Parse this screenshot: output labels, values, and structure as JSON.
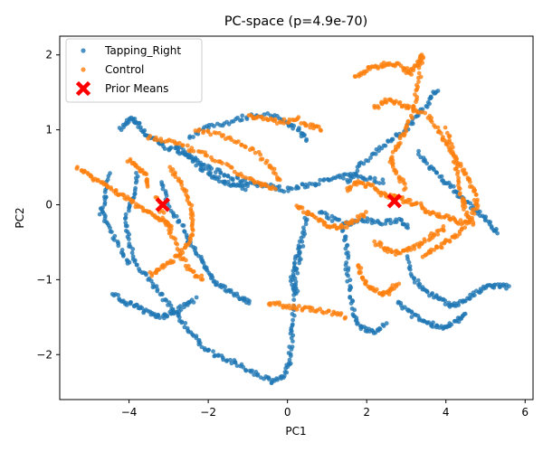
{
  "chart_data": {
    "type": "scatter",
    "title": "PC-space (p=4.9e-70)",
    "xlabel": "PC1",
    "ylabel": "PC2",
    "xlim": [
      -5.75,
      6.2
    ],
    "ylim": [
      -2.6,
      2.25
    ],
    "xticks": [
      -4,
      -2,
      0,
      2,
      4,
      6
    ],
    "yticks": [
      -2,
      -1,
      0,
      1,
      2
    ],
    "xtick_labels": [
      "−4",
      "−2",
      "0",
      "2",
      "4",
      "6"
    ],
    "ytick_labels": [
      "−2",
      "−1",
      "0",
      "1",
      "2"
    ],
    "grid": false,
    "legend_position": "top-left",
    "series": [
      {
        "name": "Tapping_Right",
        "color": "#1f77b4",
        "marker": "circle",
        "paths": [
          [
            [
              -4.2,
              1.0
            ],
            [
              -4.0,
              1.15
            ],
            [
              -3.8,
              1.1
            ],
            [
              -3.6,
              0.95
            ],
            [
              -3.3,
              0.85
            ],
            [
              -3.0,
              0.75
            ],
            [
              -2.6,
              0.7
            ],
            [
              -2.2,
              0.55
            ],
            [
              -1.8,
              0.45
            ],
            [
              -1.4,
              0.35
            ],
            [
              -1.0,
              0.3
            ],
            [
              -0.5,
              0.25
            ],
            [
              0.0,
              0.2
            ],
            [
              0.4,
              0.25
            ],
            [
              0.8,
              0.3
            ],
            [
              1.2,
              0.35
            ],
            [
              1.6,
              0.4
            ],
            [
              2.0,
              0.35
            ],
            [
              2.5,
              0.3
            ]
          ],
          [
            [
              -2.5,
              0.9
            ],
            [
              -2.0,
              1.05
            ],
            [
              -1.5,
              1.1
            ],
            [
              -1.0,
              1.18
            ],
            [
              -0.5,
              1.2
            ],
            [
              0.0,
              1.1
            ],
            [
              0.3,
              1.0
            ],
            [
              0.5,
              0.85
            ]
          ],
          [
            [
              -3.8,
              0.4
            ],
            [
              -3.9,
              0.1
            ],
            [
              -4.1,
              -0.2
            ],
            [
              -4.0,
              -0.5
            ],
            [
              -3.8,
              -0.8
            ],
            [
              -3.5,
              -1.0
            ],
            [
              -3.2,
              -1.2
            ],
            [
              -2.9,
              -1.4
            ],
            [
              -2.6,
              -1.6
            ],
            [
              -2.3,
              -1.8
            ],
            [
              -2.0,
              -1.95
            ],
            [
              -1.6,
              -2.05
            ],
            [
              -1.2,
              -2.15
            ],
            [
              -0.8,
              -2.25
            ],
            [
              -0.4,
              -2.35
            ],
            [
              -0.1,
              -2.3
            ],
            [
              0.05,
              -2.1
            ],
            [
              0.1,
              -1.8
            ],
            [
              0.15,
              -1.5
            ],
            [
              0.2,
              -1.1
            ],
            [
              0.3,
              -0.7
            ],
            [
              0.4,
              -0.4
            ],
            [
              0.5,
              -0.1
            ]
          ],
          [
            [
              -4.5,
              0.4
            ],
            [
              -4.6,
              0.1
            ],
            [
              -4.7,
              -0.1
            ],
            [
              -4.5,
              -0.3
            ],
            [
              -4.2,
              -0.6
            ],
            [
              -4.0,
              -0.8
            ]
          ],
          [
            [
              -4.4,
              -1.2
            ],
            [
              -4.1,
              -1.3
            ],
            [
              -3.8,
              -1.35
            ],
            [
              -3.5,
              -1.45
            ],
            [
              -3.2,
              -1.5
            ],
            [
              -2.9,
              -1.45
            ],
            [
              -2.6,
              -1.35
            ],
            [
              -2.3,
              -1.25
            ]
          ],
          [
            [
              -3.2,
              0.3
            ],
            [
              -3.0,
              0.0
            ],
            [
              -2.7,
              -0.25
            ],
            [
              -2.5,
              -0.5
            ],
            [
              -2.2,
              -0.7
            ],
            [
              -2.0,
              -0.9
            ],
            [
              -1.8,
              -1.05
            ],
            [
              -1.5,
              -1.15
            ],
            [
              -1.2,
              -1.25
            ],
            [
              -0.9,
              -1.3
            ]
          ],
          [
            [
              1.5,
              0.3
            ],
            [
              1.8,
              0.5
            ],
            [
              2.2,
              0.7
            ],
            [
              2.6,
              0.85
            ],
            [
              3.0,
              1.0
            ],
            [
              3.3,
              1.2
            ],
            [
              3.6,
              1.4
            ],
            [
              3.8,
              1.55
            ]
          ],
          [
            [
              1.4,
              -0.3
            ],
            [
              1.5,
              -0.6
            ],
            [
              1.5,
              -0.9
            ],
            [
              1.6,
              -1.2
            ],
            [
              1.7,
              -1.5
            ],
            [
              1.9,
              -1.65
            ],
            [
              2.2,
              -1.7
            ],
            [
              2.5,
              -1.6
            ]
          ],
          [
            [
              3.0,
              -0.7
            ],
            [
              3.2,
              -1.0
            ],
            [
              3.5,
              -1.15
            ],
            [
              3.8,
              -1.25
            ],
            [
              4.1,
              -1.35
            ],
            [
              4.4,
              -1.3
            ],
            [
              4.7,
              -1.2
            ],
            [
              5.0,
              -1.1
            ],
            [
              5.3,
              -1.08
            ],
            [
              5.6,
              -1.1
            ]
          ],
          [
            [
              2.8,
              -1.3
            ],
            [
              3.1,
              -1.45
            ],
            [
              3.4,
              -1.55
            ],
            [
              3.7,
              -1.6
            ],
            [
              4.0,
              -1.65
            ],
            [
              4.3,
              -1.55
            ],
            [
              4.5,
              -1.45
            ]
          ],
          [
            [
              3.3,
              0.7
            ],
            [
              3.6,
              0.5
            ],
            [
              3.9,
              0.35
            ],
            [
              4.2,
              0.2
            ],
            [
              4.5,
              0.05
            ],
            [
              4.8,
              -0.1
            ],
            [
              5.1,
              -0.25
            ],
            [
              5.3,
              -0.4
            ]
          ],
          [
            [
              0.8,
              -0.1
            ],
            [
              1.2,
              -0.2
            ],
            [
              1.6,
              -0.25
            ],
            [
              2.0,
              -0.2
            ],
            [
              2.4,
              -0.25
            ],
            [
              2.8,
              -0.2
            ],
            [
              3.1,
              -0.3
            ]
          ],
          [
            [
              -2.8,
              0.8
            ],
            [
              -2.5,
              0.65
            ],
            [
              -2.2,
              0.5
            ],
            [
              -1.9,
              0.4
            ],
            [
              -1.6,
              0.3
            ],
            [
              -1.3,
              0.25
            ],
            [
              -1.0,
              0.22
            ]
          ],
          [
            [
              0.3,
              -0.5
            ],
            [
              0.2,
              -0.8
            ],
            [
              0.1,
              -1.0
            ],
            [
              0.25,
              -1.2
            ]
          ]
        ]
      },
      {
        "name": "Control",
        "color": "#ff7f0e",
        "marker": "circle",
        "paths": [
          [
            [
              -5.3,
              0.5
            ],
            [
              -5.0,
              0.4
            ],
            [
              -4.7,
              0.3
            ],
            [
              -4.4,
              0.2
            ],
            [
              -4.1,
              0.1
            ],
            [
              -3.8,
              0.0
            ],
            [
              -3.5,
              -0.1
            ],
            [
              -3.2,
              -0.2
            ],
            [
              -2.9,
              -0.3
            ]
          ],
          [
            [
              -3.5,
              0.9
            ],
            [
              -3.0,
              0.85
            ],
            [
              -2.5,
              0.75
            ],
            [
              -2.0,
              0.65
            ],
            [
              -1.5,
              0.5
            ],
            [
              -1.0,
              0.35
            ],
            [
              -0.6,
              0.25
            ],
            [
              -0.3,
              0.2
            ]
          ],
          [
            [
              -3.0,
              0.5
            ],
            [
              -2.7,
              0.3
            ],
            [
              -2.5,
              0.1
            ],
            [
              -2.4,
              -0.15
            ],
            [
              -2.4,
              -0.4
            ],
            [
              -2.6,
              -0.6
            ],
            [
              -2.9,
              -0.75
            ],
            [
              -3.2,
              -0.85
            ],
            [
              -3.5,
              -0.95
            ]
          ],
          [
            [
              -2.3,
              1.0
            ],
            [
              -1.8,
              0.95
            ],
            [
              -1.3,
              0.85
            ],
            [
              -0.8,
              0.7
            ],
            [
              -0.4,
              0.5
            ],
            [
              -0.2,
              0.3
            ]
          ],
          [
            [
              -3.3,
              0.1
            ],
            [
              -3.1,
              -0.2
            ],
            [
              -2.9,
              -0.4
            ],
            [
              -2.7,
              -0.7
            ],
            [
              -2.4,
              -0.9
            ],
            [
              -2.1,
              -1.0
            ]
          ],
          [
            [
              -1.0,
              1.2
            ],
            [
              -0.6,
              1.15
            ],
            [
              -0.2,
              1.1
            ],
            [
              0.2,
              1.15
            ],
            [
              0.6,
              1.05
            ],
            [
              0.9,
              1.0
            ]
          ],
          [
            [
              1.5,
              0.2
            ],
            [
              1.8,
              0.3
            ],
            [
              2.1,
              0.25
            ],
            [
              2.4,
              0.15
            ],
            [
              2.7,
              0.1
            ],
            [
              3.0,
              0.05
            ],
            [
              3.3,
              0.0
            ],
            [
              3.6,
              -0.1
            ],
            [
              3.9,
              -0.15
            ],
            [
              4.2,
              -0.2
            ],
            [
              4.5,
              -0.25
            ]
          ],
          [
            [
              1.7,
              1.7
            ],
            [
              2.0,
              1.8
            ],
            [
              2.3,
              1.85
            ],
            [
              2.6,
              1.9
            ],
            [
              2.9,
              1.85
            ],
            [
              3.1,
              1.75
            ],
            [
              3.3,
              1.9
            ],
            [
              3.4,
              2.0
            ],
            [
              3.3,
              1.6
            ],
            [
              3.2,
              1.3
            ],
            [
              3.0,
              1.0
            ],
            [
              2.8,
              0.8
            ],
            [
              2.6,
              0.6
            ],
            [
              2.8,
              0.4
            ],
            [
              3.0,
              0.2
            ]
          ],
          [
            [
              3.5,
              1.2
            ],
            [
              3.8,
              1.0
            ],
            [
              4.0,
              0.8
            ],
            [
              4.3,
              0.6
            ],
            [
              4.5,
              0.4
            ],
            [
              4.7,
              0.2
            ],
            [
              4.8,
              0.0
            ],
            [
              4.6,
              -0.2
            ],
            [
              4.3,
              -0.4
            ],
            [
              4.0,
              -0.5
            ],
            [
              3.7,
              -0.6
            ],
            [
              3.4,
              -0.7
            ]
          ],
          [
            [
              2.2,
              -0.5
            ],
            [
              2.5,
              -0.6
            ],
            [
              2.8,
              -0.65
            ],
            [
              3.1,
              -0.6
            ],
            [
              3.4,
              -0.5
            ],
            [
              3.7,
              -0.4
            ],
            [
              4.0,
              -0.3
            ]
          ],
          [
            [
              -0.5,
              -1.3
            ],
            [
              -0.1,
              -1.35
            ],
            [
              0.3,
              -1.38
            ],
            [
              0.7,
              -1.4
            ],
            [
              1.1,
              -1.45
            ],
            [
              1.5,
              -1.5
            ]
          ],
          [
            [
              0.2,
              0.0
            ],
            [
              0.5,
              -0.1
            ],
            [
              0.8,
              -0.2
            ],
            [
              1.1,
              -0.3
            ],
            [
              1.4,
              -0.3
            ],
            [
              1.7,
              -0.2
            ],
            [
              2.0,
              -0.1
            ]
          ],
          [
            [
              2.2,
              1.3
            ],
            [
              2.5,
              1.4
            ],
            [
              2.8,
              1.35
            ],
            [
              3.1,
              1.3
            ],
            [
              3.4,
              1.2
            ]
          ],
          [
            [
              4.0,
              1.0
            ],
            [
              4.2,
              0.7
            ],
            [
              4.3,
              0.4
            ],
            [
              4.4,
              0.1
            ],
            [
              4.5,
              -0.1
            ],
            [
              4.7,
              -0.3
            ]
          ],
          [
            [
              -4.0,
              0.6
            ],
            [
              -3.8,
              0.5
            ],
            [
              -3.6,
              0.4
            ],
            [
              -3.5,
              0.2
            ]
          ],
          [
            [
              1.8,
              -0.8
            ],
            [
              1.9,
              -1.0
            ],
            [
              2.1,
              -1.1
            ],
            [
              2.4,
              -1.2
            ],
            [
              2.6,
              -1.15
            ],
            [
              2.8,
              -1.05
            ]
          ]
        ]
      },
      {
        "name": "Prior Means",
        "color": "#ff0000",
        "marker": "x",
        "points": [
          [
            -3.15,
            0.0
          ],
          [
            2.7,
            0.05
          ]
        ]
      }
    ]
  }
}
